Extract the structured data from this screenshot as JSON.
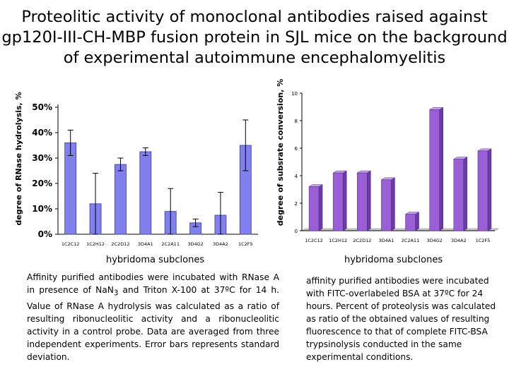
{
  "title": {
    "line1": "Proteolitic activity of monoclonal antibodies raised against",
    "line2": "gp120I-III-CH-MBP fusion protein in SJL mice on the background",
    "line3": "of experimental autoimmune encephalomyelitis"
  },
  "captions": {
    "left_html": "Affinity purified antibodies were incubated with RNase A in presence of NaN<sub>3</sub> and Triton X-100 at 37ºC for 14 h. Value of RNase A hydrolysis was calculated as a ratio of resulting ribonucleolitic activity and a ribonucleolitic activity in a control probe. Data are averaged from three independent experiments. Error bars represents standard deviation.",
    "right": "affinity purified antibodies were incubated with FITC-overlabeled BSA at 37ºC for 24 hours. Percent of proteolysis was calculated as ratio of the obtained values of resulting fluorescence to that of  complete FITC-BSA trypsinolysis conducted in the same experimental conditions."
  },
  "chart_data": [
    {
      "type": "bar",
      "ylabel": "degree of RNase hydrolysis, %",
      "xlabel": "hybridoma subclones",
      "categories": [
        "1C2C12",
        "1C2H12",
        "2C2D12",
        "3D4A1",
        "2C2A11",
        "3D4G2",
        "3D4A2",
        "1C2F5"
      ],
      "values": [
        36,
        12,
        27.5,
        32.5,
        9,
        4.5,
        7.5,
        35
      ],
      "errors": [
        5,
        12,
        2.5,
        1.5,
        9,
        1.5,
        9,
        10
      ],
      "ylim": [
        0,
        50
      ],
      "yticks": [
        "0%",
        "10%",
        "20%",
        "30%",
        "40%",
        "50%"
      ],
      "grid": false,
      "colors": {
        "fill": "#8080ee",
        "stroke": "#3a3a9a",
        "error": "#000000"
      }
    },
    {
      "type": "bar",
      "style": "3d",
      "ylabel": "degree of subsrate conversion, %",
      "xlabel": "hybridoma subclones",
      "categories": [
        "1C2C12",
        "1C2H12",
        "2C2D12",
        "3D4A1",
        "2C2A11",
        "3D4G2",
        "3D4A2",
        "1C2F5"
      ],
      "values": [
        3.2,
        4.2,
        4.2,
        3.7,
        1.2,
        8.8,
        5.2,
        5.8
      ],
      "ylim": [
        0,
        10
      ],
      "yticks": [
        "0",
        "2",
        "4",
        "6",
        "8",
        "10"
      ],
      "grid": false,
      "colors": {
        "front": "#9a5fd6",
        "top": "#c7a2ee",
        "side": "#6b3aa6",
        "floor": "#c8c8c8"
      }
    }
  ]
}
